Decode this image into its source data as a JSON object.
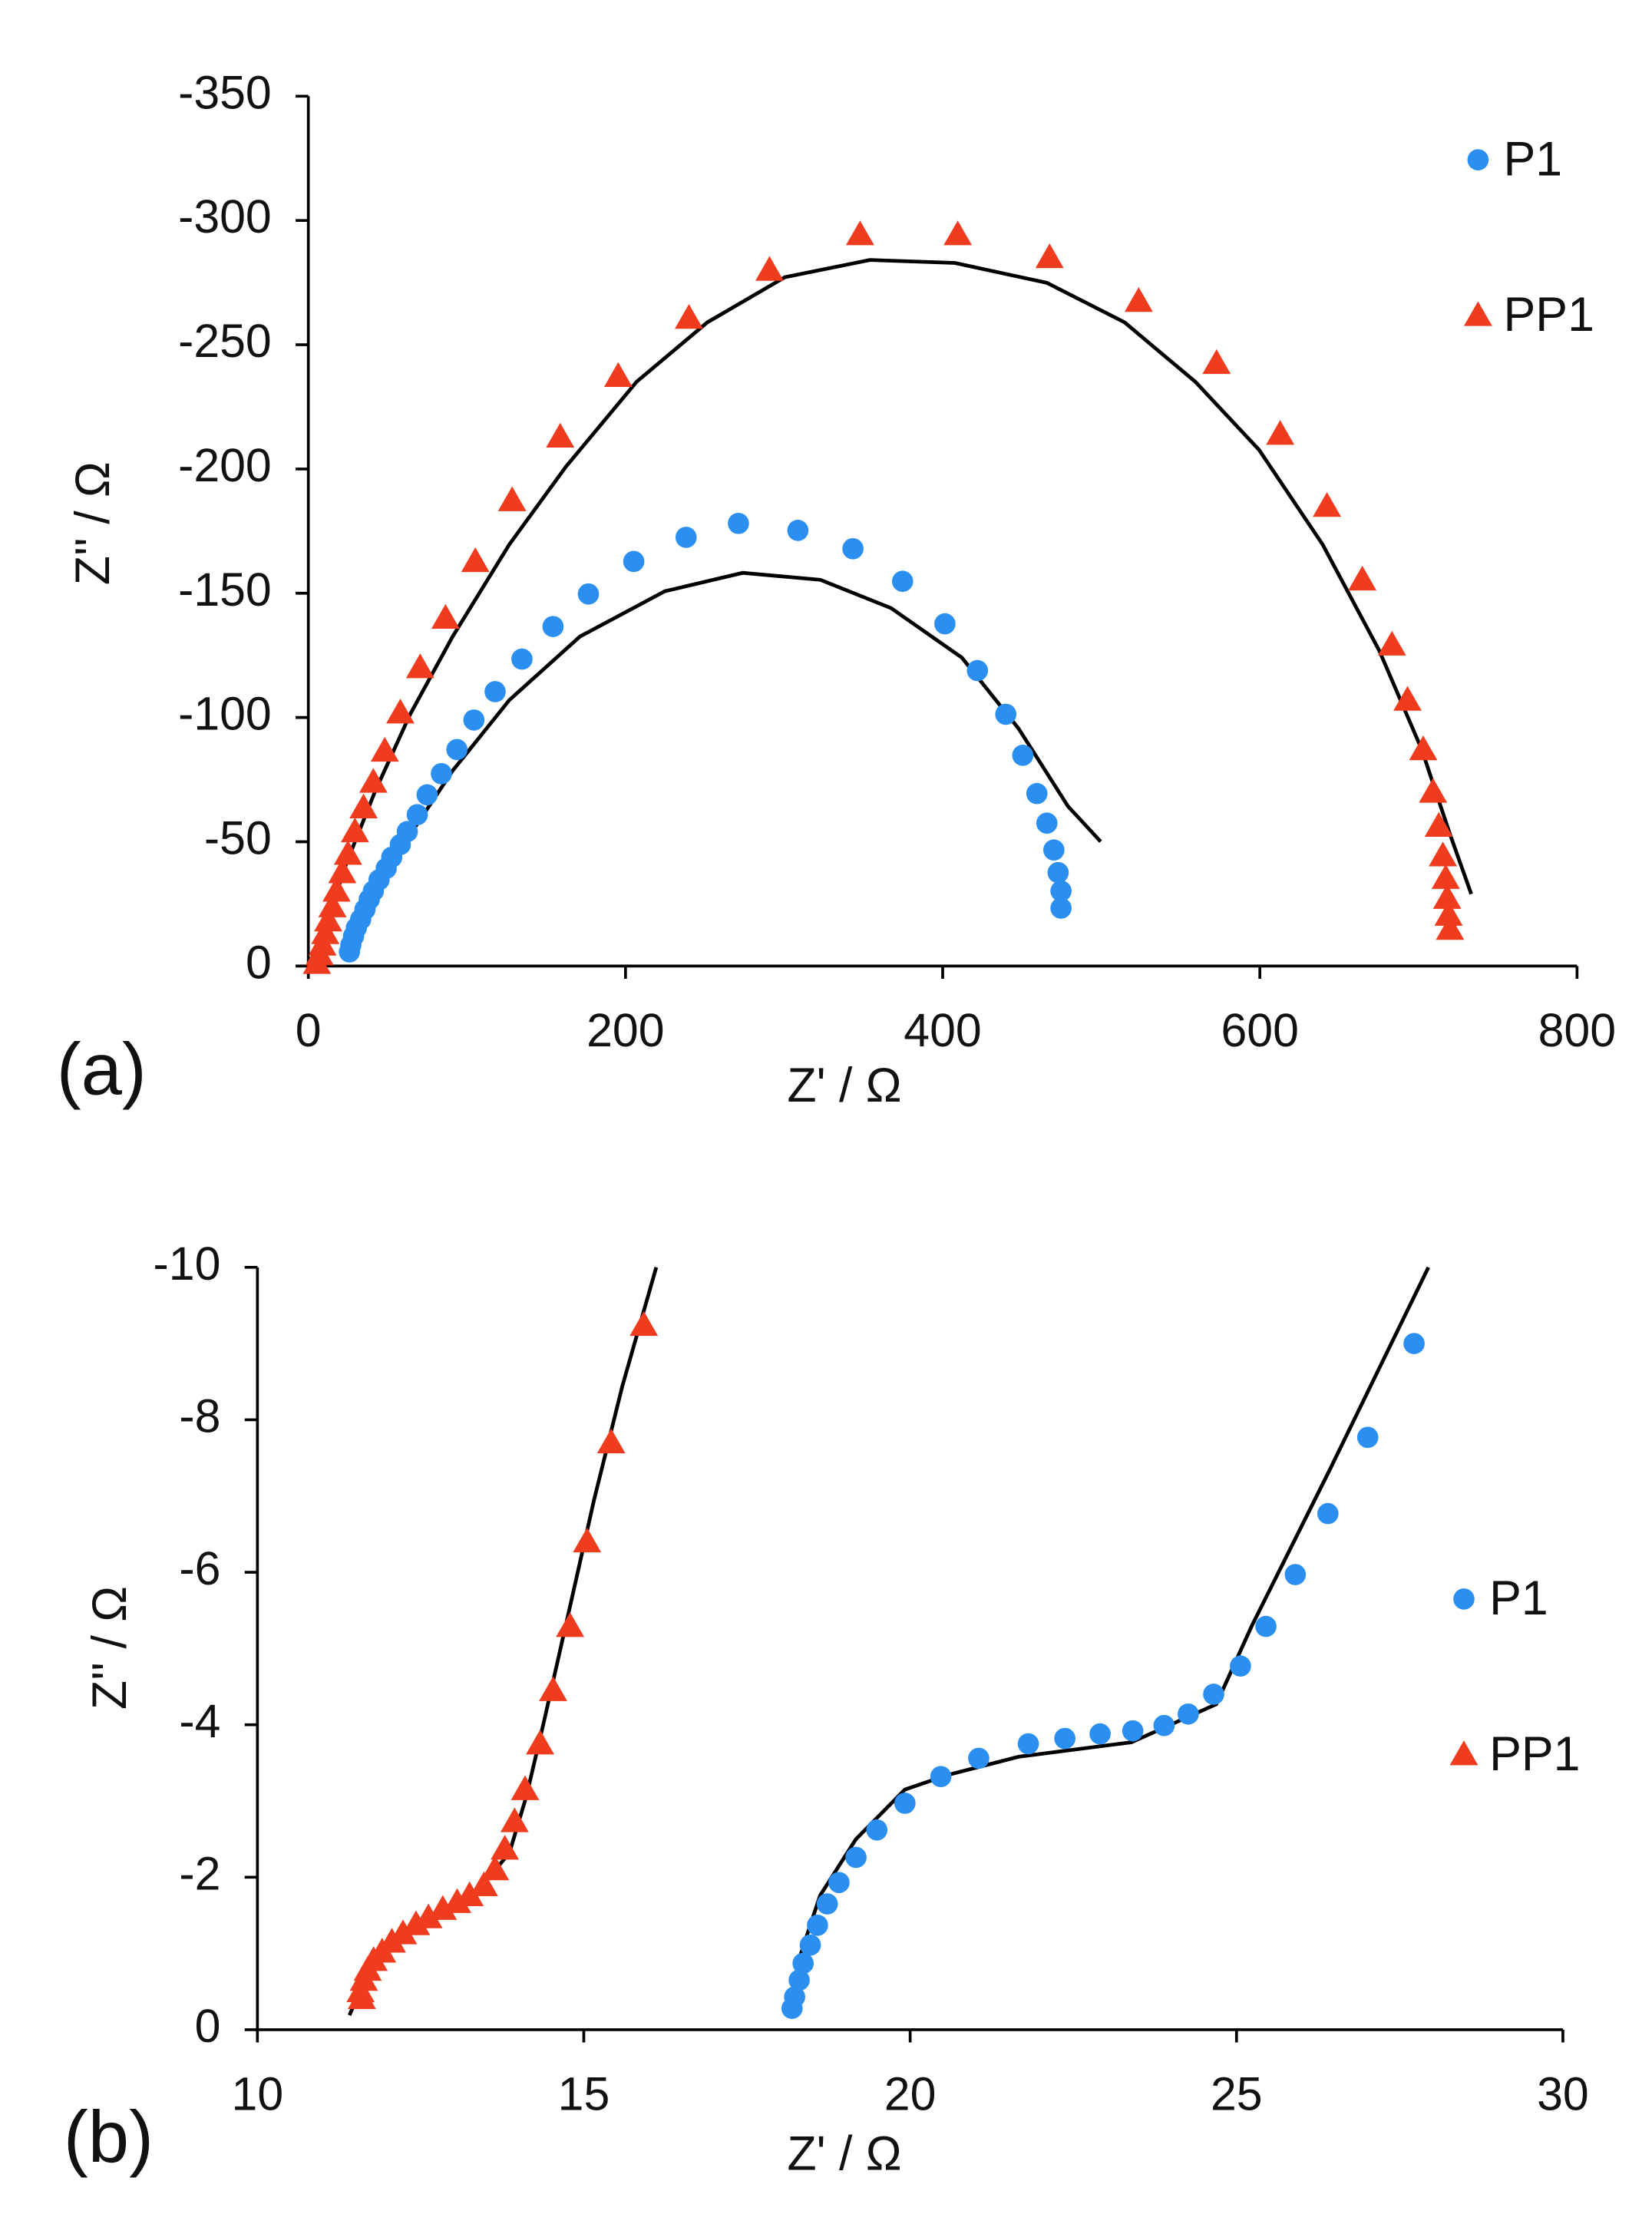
{
  "chart_data": [
    {
      "type": "scatter",
      "panel_label": "(a)",
      "x_label": "Z' / Ω",
      "y_label": "Z'' / Ω",
      "xlim": [
        0,
        800
      ],
      "xticks": [
        0,
        200,
        400,
        600,
        800
      ],
      "ylim": [
        0,
        -350
      ],
      "yticks": [
        0,
        -50,
        -100,
        -150,
        -200,
        -250,
        -300,
        -350
      ],
      "legend": "top right",
      "series": [
        {
          "name": "P1",
          "color": "#2a8ff0",
          "marker": "circle",
          "x": [
            474.6,
            474.6,
            472.8,
            470.1,
            465.7,
            459.4,
            450.5,
            439.8,
            421.9,
            401.4,
            374.7,
            343.4,
            308.7,
            271.2,
            238.2,
            205.2,
            176.6,
            154.3,
            134.7,
            117.8,
            104.4,
            93.7,
            83.9,
            74.9,
            68.7,
            62.4,
            58.0,
            52.6,
            49.1,
            44.6,
            41.0,
            38.4,
            35.7,
            33.0,
            30.3,
            28.5,
            26.8,
            25.9
          ],
          "values": [
            -23.3,
            -30.2,
            -37.6,
            -46.7,
            -57.5,
            -69.4,
            -84.8,
            -101.3,
            -118.9,
            -137.7,
            -154.8,
            -167.9,
            -175.3,
            -178.1,
            -172.5,
            -162.8,
            -149.7,
            -136.6,
            -123.5,
            -110.4,
            -99.0,
            -87.1,
            -77.4,
            -68.9,
            -60.9,
            -54.1,
            -48.9,
            -43.8,
            -39.3,
            -34.7,
            -30.2,
            -26.8,
            -22.8,
            -18.8,
            -15.4,
            -12.0,
            -8.5,
            -5.7
          ]
        },
        {
          "name": "PP1",
          "color": "#f03c1e",
          "marker": "triangle",
          "x": [
            719.9,
            719.0,
            718.1,
            717.2,
            715.4,
            712.8,
            709.2,
            703.0,
            693.1,
            683.3,
            664.6,
            642.3,
            612.8,
            572.7,
            523.6,
            467.4,
            409.5,
            347.9,
            290.8,
            240.0,
            195.4,
            158.8,
            128.5,
            105.3,
            86.5,
            70.5,
            58.0,
            48.2,
            41.0,
            34.8,
            29.4,
            25.0,
            21.4,
            17.8,
            15.2,
            12.5,
            10.7,
            8.9,
            7.1,
            5.4
          ],
          "values": [
            -14.8,
            -20.5,
            -27.3,
            -35.3,
            -44.4,
            -56.3,
            -70.0,
            -87.1,
            -107.0,
            -129.2,
            -155.4,
            -185.0,
            -214.0,
            -242.5,
            -267.5,
            -285.1,
            -294.3,
            -294.3,
            -280.0,
            -260.7,
            -237.3,
            -212.9,
            -187.3,
            -162.8,
            -140.0,
            -120.1,
            -101.9,
            -86.5,
            -74.0,
            -63.7,
            -54.1,
            -45.0,
            -37.6,
            -30.2,
            -23.9,
            -18.2,
            -13.1,
            -8.5,
            -4.6,
            -1.1
          ]
        }
      ],
      "fits": [
        {
          "color": "#000000",
          "x": [
            26.8,
            33.0,
            46.4,
            64.2,
            91.0,
            126.7,
            171.3,
            224.8,
            273.9,
            322.9,
            367.5,
            412.1,
            447.8,
            479.0,
            499.6
          ],
          "values": [
            -2.8,
            -13.1,
            -33.0,
            -52.9,
            -78.6,
            -107.0,
            -132.6,
            -150.8,
            -158.2,
            -155.4,
            -144.0,
            -124.1,
            -95.6,
            -64.3,
            -50.1
          ]
        },
        {
          "color": "#000000",
          "x": [
            3.6,
            10.7,
            24.1,
            41.9,
            64.2,
            91.0,
            126.7,
            162.4,
            207.0,
            251.6,
            300.6,
            354.1,
            407.7,
            465.7,
            514.7,
            559.3,
            599.5,
            639.6,
            675.3,
            702.1,
            719.9,
            733.3
          ],
          "values": [
            0,
            -15.9,
            -41.5,
            -70.0,
            -101.3,
            -132.6,
            -169.6,
            -200.9,
            -235.1,
            -259.0,
            -277.2,
            -284.1,
            -282.9,
            -274.9,
            -259.0,
            -235.1,
            -207.7,
            -169.6,
            -126.9,
            -87.1,
            -53.0,
            -29.0
          ]
        }
      ]
    },
    {
      "type": "scatter",
      "panel_label": "(b)",
      "x_label": "Z' / Ω",
      "y_label": "Z'' / Ω",
      "xlim": [
        10,
        30
      ],
      "xticks": [
        10,
        15,
        20,
        25,
        30
      ],
      "ylim": [
        0,
        -10
      ],
      "yticks": [
        0,
        -2,
        -4,
        -6,
        -8,
        -10
      ],
      "legend": "right",
      "series": [
        {
          "name": "P1",
          "color": "#2a8ff0",
          "marker": "circle",
          "x": [
            27.72,
            27.01,
            26.4,
            25.9,
            25.45,
            25.06,
            24.65,
            24.26,
            23.89,
            23.41,
            22.91,
            22.37,
            21.81,
            21.05,
            20.47,
            19.92,
            19.49,
            19.17,
            18.91,
            18.73,
            18.58,
            18.47,
            18.36,
            18.3,
            18.23,
            18.19
          ],
          "values": [
            -9.0,
            -7.77,
            -6.77,
            -5.97,
            -5.29,
            -4.77,
            -4.4,
            -4.14,
            -3.99,
            -3.92,
            -3.88,
            -3.82,
            -3.75,
            -3.56,
            -3.32,
            -2.97,
            -2.62,
            -2.26,
            -1.93,
            -1.65,
            -1.37,
            -1.11,
            -0.87,
            -0.65,
            -0.43,
            -0.28
          ]
        },
        {
          "name": "PP1",
          "color": "#f03c1e",
          "marker": "triangle",
          "x": [
            15.92,
            15.42,
            15.05,
            14.79,
            14.53,
            14.33,
            14.1,
            13.94,
            13.79,
            13.64,
            13.47,
            13.25,
            13.06,
            12.84,
            12.62,
            12.43,
            12.23,
            12.06,
            11.91,
            11.78,
            11.69,
            11.63,
            11.58,
            11.6
          ],
          "values": [
            -9.24,
            -7.7,
            -6.4,
            -5.29,
            -4.45,
            -3.75,
            -3.15,
            -2.73,
            -2.37,
            -2.1,
            -1.89,
            -1.76,
            -1.67,
            -1.58,
            -1.47,
            -1.38,
            -1.26,
            -1.15,
            -1.02,
            -0.91,
            -0.78,
            -0.65,
            -0.5,
            -0.41
          ]
        }
      ],
      "fits": [
        {
          "color": "#000000",
          "x": [
            18.13,
            18.3,
            18.62,
            19.17,
            19.92,
            20.57,
            21.66,
            23.39,
            24.69,
            25.23,
            26.42,
            27.94
          ],
          "values": [
            -0.19,
            -0.93,
            -1.76,
            -2.5,
            -3.15,
            -3.34,
            -3.58,
            -3.77,
            -4.27,
            -5.29,
            -7.33,
            -10
          ]
        },
        {
          "color": "#000000",
          "x": [
            11.41,
            11.69,
            12.12,
            12.77,
            13.42,
            13.86,
            14.12,
            14.4,
            14.72,
            15.16,
            15.59,
            16.11
          ],
          "values": [
            -0.19,
            -0.74,
            -1.21,
            -1.54,
            -1.86,
            -2.32,
            -3.06,
            -4.08,
            -5.29,
            -6.96,
            -8.44,
            -10
          ]
        }
      ]
    }
  ]
}
